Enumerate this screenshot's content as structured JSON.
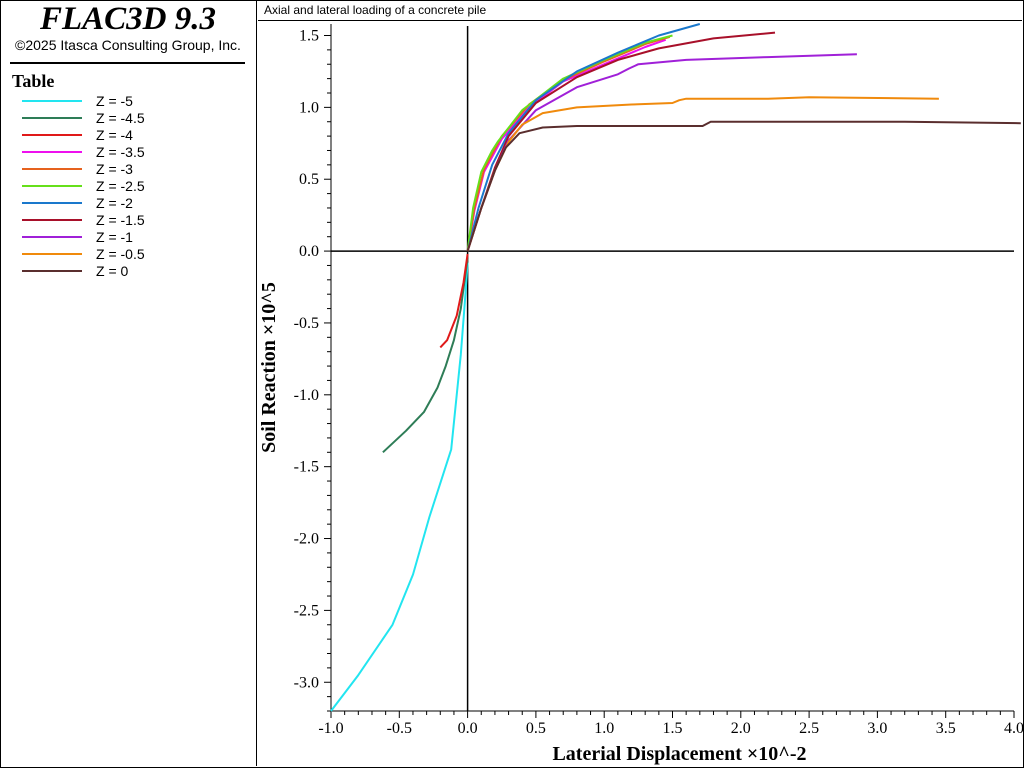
{
  "app": {
    "title": "FLAC3D 9.3",
    "copyright": "©2025 Itasca Consulting Group, Inc."
  },
  "legend": {
    "title": "Table"
  },
  "plot": {
    "subtitle": "Axial and lateral loading of a concrete pile"
  },
  "chart_data": {
    "type": "line",
    "title": "Axial and lateral loading of a concrete pile",
    "xlabel": "Laterial Displacement ×10^-2",
    "ylabel": "Soil Reaction ×10^5",
    "xlim": [
      -1.0,
      4.0
    ],
    "ylim": [
      -3.2,
      1.58
    ],
    "xticks": [
      "-1.0",
      "-0.5",
      "0.0",
      "0.5",
      "1.0",
      "1.5",
      "2.0",
      "2.5",
      "3.0",
      "3.5",
      "4.0"
    ],
    "yticks": [
      "1.5",
      "1.0",
      "0.5",
      "0.0",
      "-0.5",
      "-1.0",
      "-1.5",
      "-2.0",
      "-2.5",
      "-3.0"
    ],
    "grid": false,
    "legend_position": "left-panel",
    "series": [
      {
        "name": "Z = -5",
        "color": "#22e5f0",
        "points": [
          [
            -1.0,
            -3.2
          ],
          [
            -0.8,
            -2.95
          ],
          [
            -0.55,
            -2.6
          ],
          [
            -0.4,
            -2.25
          ],
          [
            -0.28,
            -1.85
          ],
          [
            -0.12,
            -1.38
          ],
          [
            -0.05,
            -0.72
          ],
          [
            -0.02,
            -0.35
          ],
          [
            0.0,
            -0.08
          ]
        ]
      },
      {
        "name": "Z = -4.5",
        "color": "#2e7d57",
        "points": [
          [
            -0.62,
            -1.4
          ],
          [
            -0.45,
            -1.25
          ],
          [
            -0.32,
            -1.12
          ],
          [
            -0.22,
            -0.95
          ],
          [
            -0.16,
            -0.8
          ],
          [
            -0.1,
            -0.62
          ],
          [
            -0.05,
            -0.4
          ],
          [
            0.0,
            -0.05
          ]
        ]
      },
      {
        "name": "Z = -4",
        "color": "#e01919",
        "points": [
          [
            -0.2,
            -0.67
          ],
          [
            -0.15,
            -0.62
          ],
          [
            -0.08,
            -0.45
          ],
          [
            -0.03,
            -0.22
          ],
          [
            0.0,
            -0.02
          ]
        ]
      },
      {
        "name": "Z = -3.5",
        "color": "#ee10ee",
        "points": [
          [
            0.0,
            0.0
          ],
          [
            0.05,
            0.28
          ],
          [
            0.12,
            0.55
          ],
          [
            0.25,
            0.78
          ],
          [
            0.45,
            1.0
          ],
          [
            0.7,
            1.18
          ],
          [
            1.0,
            1.3
          ],
          [
            1.3,
            1.42
          ],
          [
            1.45,
            1.47
          ]
        ]
      },
      {
        "name": "Z = -3",
        "color": "#e6621e",
        "points": [
          [
            0.0,
            0.0
          ],
          [
            0.05,
            0.3
          ],
          [
            0.12,
            0.57
          ],
          [
            0.25,
            0.8
          ],
          [
            0.45,
            1.02
          ],
          [
            0.7,
            1.19
          ],
          [
            1.0,
            1.32
          ],
          [
            1.3,
            1.44
          ],
          [
            1.48,
            1.49
          ]
        ]
      },
      {
        "name": "Z = -2.5",
        "color": "#66e01a",
        "points": [
          [
            0.0,
            0.0
          ],
          [
            0.04,
            0.3
          ],
          [
            0.1,
            0.55
          ],
          [
            0.18,
            0.7
          ],
          [
            0.22,
            0.76
          ],
          [
            0.4,
            0.98
          ],
          [
            0.7,
            1.2
          ],
          [
            1.0,
            1.33
          ],
          [
            1.3,
            1.45
          ],
          [
            1.5,
            1.5
          ]
        ]
      },
      {
        "name": "Z = -2",
        "color": "#1a78cc",
        "points": [
          [
            0.0,
            0.0
          ],
          [
            0.08,
            0.3
          ],
          [
            0.18,
            0.6
          ],
          [
            0.3,
            0.82
          ],
          [
            0.5,
            1.05
          ],
          [
            0.8,
            1.25
          ],
          [
            1.1,
            1.38
          ],
          [
            1.4,
            1.5
          ],
          [
            1.7,
            1.58
          ]
        ]
      },
      {
        "name": "Z = -1.5",
        "color": "#a8102a",
        "points": [
          [
            0.0,
            0.0
          ],
          [
            0.1,
            0.3
          ],
          [
            0.2,
            0.58
          ],
          [
            0.3,
            0.8
          ],
          [
            0.5,
            1.03
          ],
          [
            0.8,
            1.21
          ],
          [
            1.1,
            1.33
          ],
          [
            1.4,
            1.41
          ],
          [
            1.8,
            1.48
          ],
          [
            2.25,
            1.52
          ]
        ]
      },
      {
        "name": "Z = -1",
        "color": "#a020d8",
        "points": [
          [
            0.0,
            0.0
          ],
          [
            0.1,
            0.3
          ],
          [
            0.2,
            0.56
          ],
          [
            0.3,
            0.77
          ],
          [
            0.5,
            0.98
          ],
          [
            0.8,
            1.14
          ],
          [
            1.1,
            1.23
          ],
          [
            1.18,
            1.27
          ],
          [
            1.25,
            1.3
          ],
          [
            1.6,
            1.33
          ],
          [
            2.2,
            1.35
          ],
          [
            2.85,
            1.37
          ]
        ]
      },
      {
        "name": "Z = -0.5",
        "color": "#f08a0c",
        "points": [
          [
            0.0,
            0.0
          ],
          [
            0.1,
            0.3
          ],
          [
            0.2,
            0.56
          ],
          [
            0.3,
            0.76
          ],
          [
            0.4,
            0.88
          ],
          [
            0.55,
            0.96
          ],
          [
            0.8,
            1.0
          ],
          [
            1.2,
            1.02
          ],
          [
            1.5,
            1.03
          ],
          [
            1.55,
            1.05
          ],
          [
            1.6,
            1.06
          ],
          [
            2.2,
            1.06
          ],
          [
            2.5,
            1.07
          ],
          [
            3.45,
            1.06
          ]
        ]
      },
      {
        "name": "Z = 0",
        "color": "#5a2e2e",
        "points": [
          [
            0.0,
            0.0
          ],
          [
            0.1,
            0.3
          ],
          [
            0.2,
            0.56
          ],
          [
            0.28,
            0.72
          ],
          [
            0.38,
            0.82
          ],
          [
            0.55,
            0.86
          ],
          [
            0.8,
            0.87
          ],
          [
            1.5,
            0.87
          ],
          [
            1.72,
            0.87
          ],
          [
            1.78,
            0.9
          ],
          [
            2.5,
            0.9
          ],
          [
            3.2,
            0.9
          ],
          [
            4.05,
            0.89
          ]
        ]
      }
    ]
  }
}
